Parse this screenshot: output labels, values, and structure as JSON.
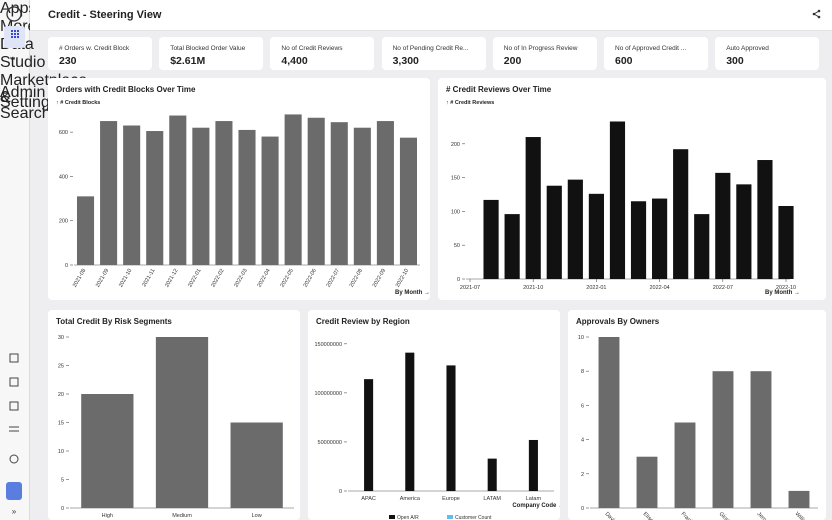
{
  "header": {
    "title": "Credit - Steering View"
  },
  "sidebar": {
    "items": [
      "Apps",
      "More",
      "Data",
      "Studio",
      "Marketplace",
      "Admin & Settings",
      "Search"
    ]
  },
  "kpis": [
    {
      "label": "# Orders w. Credit Block",
      "value": "230"
    },
    {
      "label": "Total Blocked Order Value",
      "value": "$2.61M"
    },
    {
      "label": "No of Credit Reviews",
      "value": "4,400"
    },
    {
      "label": "No of Pending Credit Re...",
      "value": "3,300"
    },
    {
      "label": "No of In Progress Review",
      "value": "200"
    },
    {
      "label": "No of Approved Credit ...",
      "value": "600"
    },
    {
      "label": "Auto Approved",
      "value": "300"
    }
  ],
  "chart_data": [
    {
      "type": "bar",
      "title": "Orders with Credit Blocks Over Time",
      "y_label": "↑ # Credit Blocks",
      "x_label": "By Month →",
      "categories": [
        "2021-08",
        "2021-09",
        "2021-10",
        "2021-11",
        "2021-12",
        "2022-01",
        "2022-02",
        "2022-03",
        "2022-04",
        "2022-05",
        "2022-06",
        "2022-07",
        "2022-08",
        "2022-09",
        "2022-10"
      ],
      "values": [
        310,
        650,
        630,
        605,
        675,
        620,
        650,
        610,
        580,
        680,
        665,
        645,
        620,
        650,
        575
      ],
      "color": "#6b6b6b",
      "ylim": [
        0,
        700
      ],
      "yticks": [
        0,
        200,
        400,
        600
      ]
    },
    {
      "type": "bar",
      "title": "# Credit Reviews Over Time",
      "y_label": "↑ # Credit Reviews",
      "x_label": "By Month →",
      "x": [
        "2021-08",
        "2021-09",
        "2021-10",
        "2021-11",
        "2021-12",
        "2022-01",
        "2022-02",
        "2022-03",
        "2022-04",
        "2022-05",
        "2022-06",
        "2022-07",
        "2022-08",
        "2022-09",
        "2022-10"
      ],
      "values": [
        117,
        96,
        210,
        138,
        147,
        126,
        233,
        115,
        119,
        192,
        96,
        157,
        140,
        176,
        108
      ],
      "xticks": [
        "2021-07",
        "2021-10",
        "2022-01",
        "2022-04",
        "2022-07",
        "2022-10"
      ],
      "color": "#111111",
      "ylim": [
        0,
        250
      ],
      "yticks": [
        0,
        50,
        100,
        150,
        200
      ]
    },
    {
      "type": "bar",
      "title": "Total Credit By Risk Segments",
      "categories": [
        "High",
        "Medium",
        "Low"
      ],
      "values": [
        20,
        30,
        15
      ],
      "color": "#6b6b6b",
      "ylim": [
        0,
        30
      ],
      "yticks": [
        0,
        5,
        10,
        15,
        20,
        25,
        30
      ]
    },
    {
      "type": "bar",
      "title": "Credit Review by Region",
      "x_label": "Company Code →",
      "categories": [
        "APAC",
        "America",
        "Europe",
        "LATAM",
        "Latam"
      ],
      "series": [
        {
          "name": "Open A/R",
          "color": "#111111",
          "values": [
            114000000,
            141000000,
            128000000,
            33000000,
            52000000
          ]
        },
        {
          "name": "Customer Count",
          "color": "#5bc0eb",
          "values": [
            null,
            null,
            null,
            null,
            null
          ]
        }
      ],
      "ylim": [
        0,
        160000000
      ],
      "yticks": [
        0,
        50000000,
        100000000,
        150000000
      ]
    },
    {
      "type": "bar",
      "title": "Approvals By Owners",
      "categories": [
        "David Bash",
        "Elise Morey",
        "Frank Elliott",
        "Gloria Harvard",
        "Jerry Jones",
        "William Brown"
      ],
      "values": [
        10,
        3,
        5,
        8,
        8,
        1
      ],
      "color": "#6b6b6b",
      "ylim": [
        0,
        10
      ],
      "yticks": [
        0,
        2,
        4,
        6,
        8,
        10
      ]
    }
  ]
}
